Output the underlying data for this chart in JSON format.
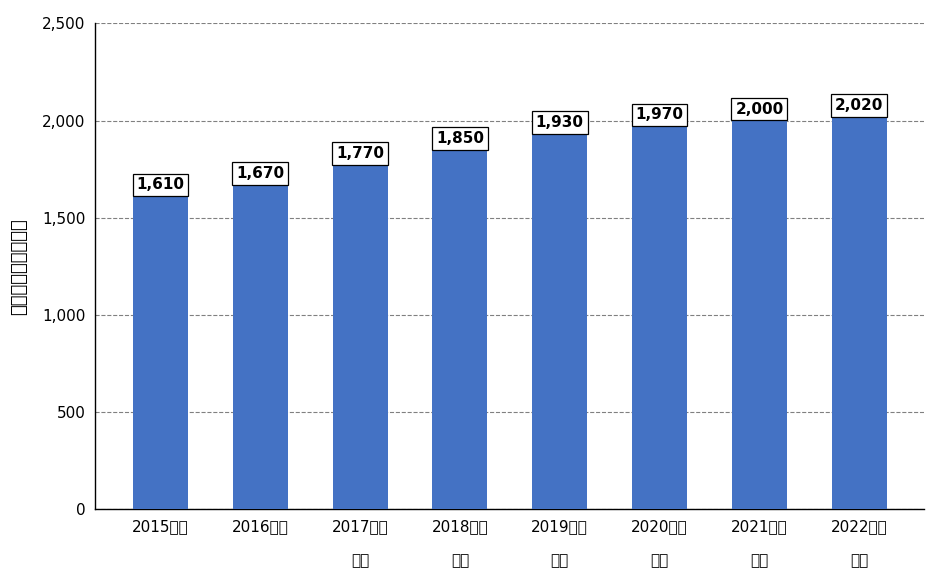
{
  "categories_line1": [
    "2015年度",
    "2016年度",
    "2017年度",
    "2018年度",
    "2019年度",
    "2020年度",
    "2021年度",
    "2022年度"
  ],
  "categories_line2": [
    "",
    "",
    "見込",
    "予測",
    "予測",
    "予測",
    "予測",
    "予測"
  ],
  "values": [
    1610,
    1670,
    1770,
    1850,
    1930,
    1970,
    2000,
    2020
  ],
  "bar_color": "#4472C4",
  "ylabel_chars": [
    "事",
    "業",
    "売",
    "上",
    "高",
    "（",
    "億",
    "円",
    "）"
  ],
  "ylim": [
    0,
    2500
  ],
  "yticks": [
    0,
    500,
    1000,
    1500,
    2000,
    2500
  ],
  "background_color": "#ffffff",
  "grid_color": "#808080",
  "tick_fontsize": 11,
  "ylabel_fontsize": 13,
  "bar_label_fontsize": 11
}
